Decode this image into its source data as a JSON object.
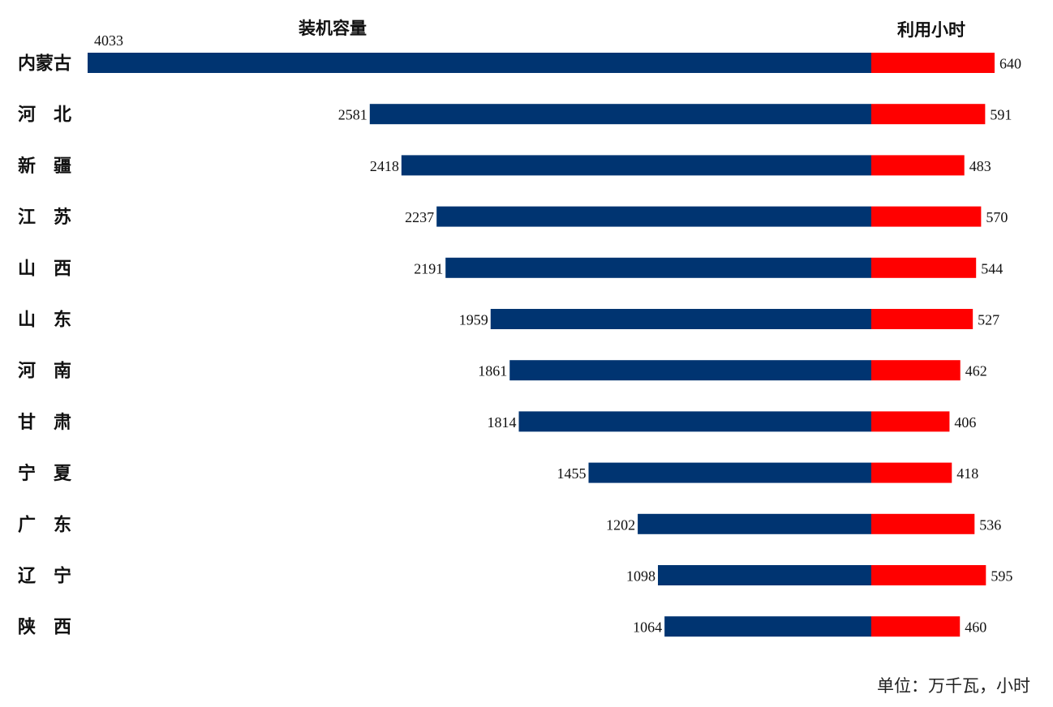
{
  "chart_data": {
    "type": "bar",
    "headers": {
      "capacity": "装机容量",
      "hours": "利用小时"
    },
    "unit_note": "单位：万千瓦，小时",
    "categories": [
      "内蒙古",
      "河　北",
      "新　疆",
      "江　苏",
      "山　西",
      "山　东",
      "河　南",
      "甘　肃",
      "宁　夏",
      "广　东",
      "辽　宁",
      "陕　西"
    ],
    "series": [
      {
        "key": "capacity",
        "color": "#003471",
        "values": [
          4033,
          2581,
          2418,
          2237,
          2191,
          1959,
          1861,
          1814,
          1455,
          1202,
          1098,
          1064
        ]
      },
      {
        "key": "hours",
        "color": "#ff0000",
        "values": [
          640,
          591,
          483,
          570,
          544,
          527,
          462,
          406,
          418,
          536,
          595,
          460
        ]
      }
    ]
  }
}
